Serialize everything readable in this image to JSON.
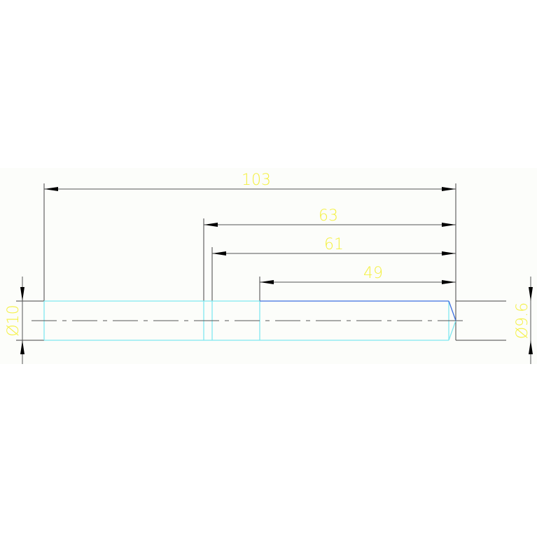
{
  "drawing": {
    "dimensions": {
      "overall_length": "103",
      "length_63": "63",
      "length_61": "61",
      "length_49": "49",
      "diameter_left": "Ø10",
      "diameter_right": "Ø9.6"
    },
    "colors": {
      "dimension_line": "#555555",
      "dimension_text": "#f4f040",
      "part_outline": "#7fe8f0",
      "edge_highlight": "#3b6fe0",
      "background": "#fdfdfb"
    }
  }
}
